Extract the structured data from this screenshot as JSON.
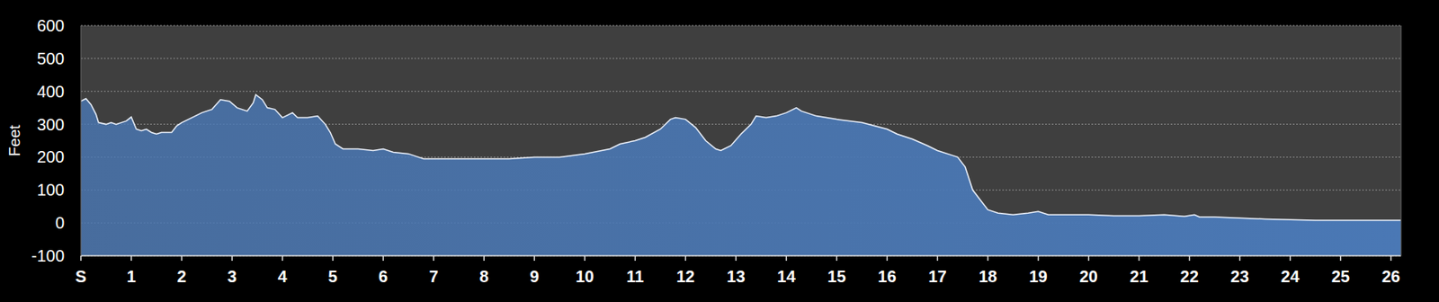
{
  "chart_data": {
    "type": "area",
    "y_label": "Feet",
    "color": "#4a78b5",
    "grid": true,
    "x": [
      0,
      0.1,
      0.2,
      0.3,
      0.35,
      0.5,
      0.6,
      0.7,
      0.8,
      0.9,
      1.0,
      1.1,
      1.2,
      1.3,
      1.4,
      1.5,
      1.6,
      1.8,
      1.9,
      2.0,
      2.2,
      2.4,
      2.6,
      2.77,
      2.95,
      3.1,
      3.3,
      3.42,
      3.47,
      3.6,
      3.7,
      3.85,
      4.0,
      4.2,
      4.3,
      4.5,
      4.7,
      4.85,
      4.95,
      5.05,
      5.2,
      5.5,
      5.8,
      6.0,
      6.2,
      6.5,
      6.6,
      6.8,
      7.0,
      7.5,
      8.0,
      8.5,
      9.0,
      9.5,
      10.0,
      10.5,
      10.7,
      11.0,
      11.2,
      11.5,
      11.7,
      11.8,
      12.0,
      12.2,
      12.4,
      12.6,
      12.7,
      12.9,
      13.1,
      13.3,
      13.4,
      13.6,
      13.8,
      14.0,
      14.2,
      14.3,
      14.6,
      15.0,
      15.5,
      16.0,
      16.2,
      16.5,
      16.8,
      17.0,
      17.3,
      17.4,
      17.55,
      17.7,
      17.9,
      18.0,
      18.2,
      18.5,
      18.8,
      19.0,
      19.2,
      19.5,
      20.0,
      20.5,
      21.0,
      21.5,
      21.9,
      22.1,
      22.2,
      22.5,
      23.0,
      23.5,
      24.0,
      24.5,
      25.0,
      26.2
    ],
    "values": [
      370,
      378,
      360,
      330,
      305,
      300,
      305,
      300,
      305,
      310,
      322,
      285,
      280,
      285,
      275,
      270,
      275,
      275,
      295,
      305,
      320,
      335,
      345,
      375,
      370,
      350,
      340,
      365,
      390,
      375,
      350,
      345,
      320,
      335,
      320,
      320,
      325,
      300,
      275,
      240,
      225,
      225,
      220,
      225,
      215,
      210,
      205,
      195,
      195,
      195,
      195,
      195,
      200,
      200,
      210,
      225,
      240,
      250,
      260,
      285,
      315,
      320,
      315,
      290,
      250,
      225,
      220,
      235,
      270,
      300,
      325,
      320,
      325,
      335,
      350,
      340,
      325,
      315,
      305,
      285,
      270,
      255,
      235,
      220,
      205,
      200,
      170,
      100,
      60,
      40,
      30,
      25,
      30,
      35,
      25,
      25,
      25,
      22,
      22,
      25,
      20,
      25,
      18,
      18,
      15,
      12,
      10,
      8,
      8,
      8
    ],
    "xlim": [
      0,
      26.2
    ],
    "xticks": [
      {
        "value": 0,
        "label": "S"
      },
      1,
      2,
      3,
      4,
      5,
      6,
      7,
      8,
      9,
      10,
      11,
      12,
      13,
      14,
      15,
      16,
      17,
      18,
      19,
      20,
      21,
      22,
      23,
      24,
      25,
      26
    ],
    "ylim": [
      -100,
      600
    ],
    "yticks": [
      -100,
      0,
      100,
      200,
      300,
      400,
      500,
      600
    ]
  }
}
